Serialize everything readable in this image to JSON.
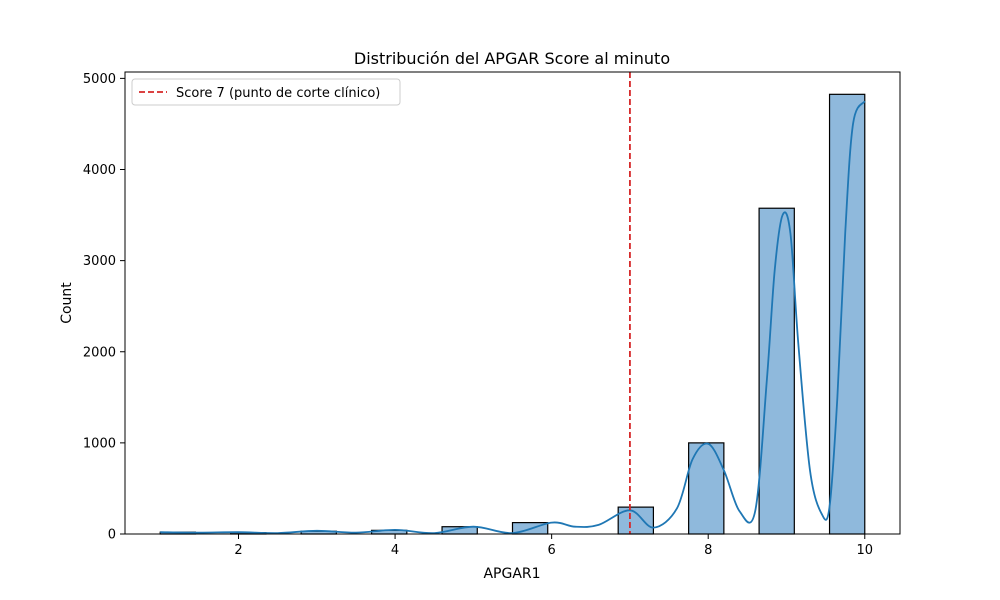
{
  "chart_data": {
    "type": "bar",
    "title": "Distribución del APGAR Score al minuto",
    "xlabel": "APGAR1",
    "ylabel": "Count",
    "xlim": [
      0.55,
      10.45
    ],
    "ylim": [
      0,
      5070
    ],
    "xticks": [
      2,
      4,
      6,
      8,
      10
    ],
    "yticks": [
      0,
      1000,
      2000,
      3000,
      4000,
      5000
    ],
    "bin_width": 0.45,
    "bins": [
      {
        "start": 1.0,
        "count": 20
      },
      {
        "start": 1.9,
        "count": 15
      },
      {
        "start": 2.8,
        "count": 30
      },
      {
        "start": 3.7,
        "count": 40
      },
      {
        "start": 4.6,
        "count": 80
      },
      {
        "start": 5.5,
        "count": 125
      },
      {
        "start": 6.85,
        "count": 295
      },
      {
        "start": 7.75,
        "count": 1000
      },
      {
        "start": 8.65,
        "count": 3575
      },
      {
        "start": 9.55,
        "count": 4825
      }
    ],
    "kde": {
      "x": [
        1.0,
        1.5,
        2.0,
        2.5,
        3.0,
        3.5,
        4.0,
        4.5,
        5.0,
        5.5,
        6.0,
        6.3,
        6.6,
        7.0,
        7.3,
        7.6,
        7.8,
        8.0,
        8.2,
        8.4,
        8.6,
        8.75,
        8.85,
        8.95,
        9.05,
        9.15,
        9.3,
        9.45,
        9.55,
        9.65,
        9.75,
        9.85,
        10.0
      ],
      "y": [
        20,
        15,
        20,
        10,
        35,
        15,
        45,
        10,
        80,
        10,
        125,
        80,
        100,
        260,
        70,
        280,
        820,
        990,
        700,
        250,
        250,
        1700,
        2900,
        3500,
        3300,
        2100,
        700,
        220,
        300,
        1500,
        3300,
        4500,
        4750
      ]
    },
    "reference_line": {
      "x": 7,
      "label": "Score 7 (punto de corte clínico)",
      "color": "#d62728",
      "style": "dashed"
    },
    "legend_position": "top-left",
    "bar_fill": "#8fb9dc",
    "bar_edge": "#000000",
    "kde_color": "#1f77b4",
    "grid": false
  }
}
